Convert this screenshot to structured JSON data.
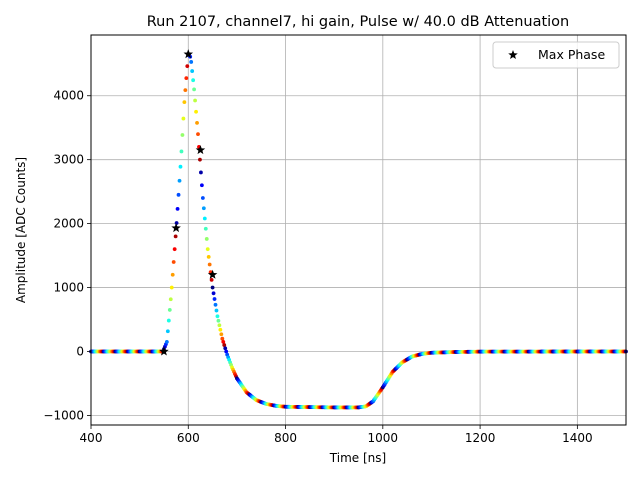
{
  "chart_data": {
    "type": "scatter",
    "title": "Run 2107, channel7, hi gain, Pulse w/ 40.0 dB Attenuation",
    "xlabel": "Time [ns]",
    "ylabel": "Amplitude [ADC Counts]",
    "xlim": [
      400,
      1500
    ],
    "ylim": [
      -1150,
      4950
    ],
    "xticks": [
      400,
      600,
      800,
      1000,
      1200,
      1400
    ],
    "xtick_labels": [
      "400",
      "600",
      "800",
      "1000",
      "1200",
      "1400"
    ],
    "yticks": [
      -1000,
      0,
      1000,
      2000,
      3000,
      4000
    ],
    "ytick_labels": [
      "−1000",
      "0",
      "1000",
      "2000",
      "3000",
      "4000"
    ],
    "grid": true,
    "legend": {
      "position": "top-right",
      "entries": [
        "Max Phase"
      ]
    },
    "pulse_series": {
      "x": [
        400,
        548,
        556,
        565,
        575,
        585,
        592,
        600,
        605,
        612,
        620,
        630,
        640,
        650,
        660,
        670,
        680,
        690,
        700,
        720,
        740,
        760,
        780,
        800,
        850,
        900,
        950,
        965,
        980,
        1000,
        1020,
        1040,
        1060,
        1080,
        1100,
        1150,
        1200,
        1500
      ],
      "y": [
        0,
        0,
        150,
        900,
        1900,
        3000,
        3900,
        4650,
        4600,
        4100,
        3400,
        2400,
        1600,
        1000,
        550,
        200,
        -50,
        -250,
        -420,
        -640,
        -760,
        -820,
        -850,
        -865,
        -870,
        -875,
        -875,
        -860,
        -780,
        -560,
        -320,
        -170,
        -80,
        -40,
        -20,
        -8,
        -3,
        0
      ],
      "colormap": "jet"
    },
    "series": [
      {
        "name": "Max Phase",
        "marker": "star",
        "x": [
          550,
          575,
          600,
          625,
          650
        ],
        "y": [
          0,
          1930,
          4650,
          3150,
          1200
        ]
      }
    ]
  }
}
